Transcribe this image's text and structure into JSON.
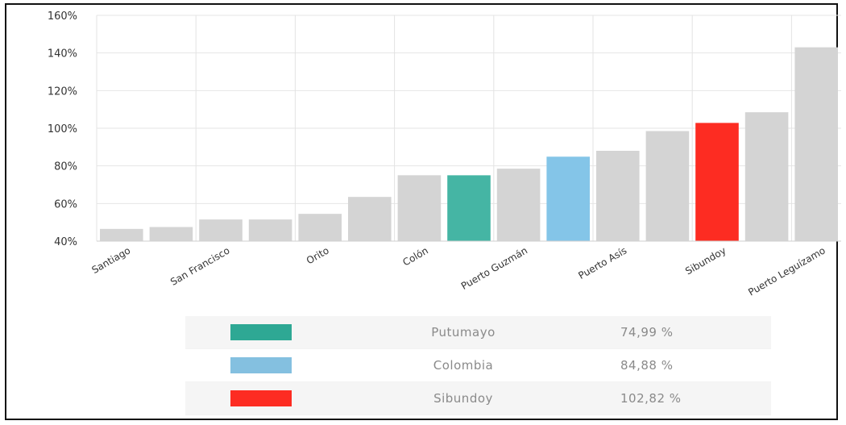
{
  "chart_data": {
    "type": "bar",
    "categories": [
      "Santiago",
      "",
      "San Francisco",
      "",
      "Orito",
      "",
      "Colón",
      "",
      "Puerto Guzmán",
      "",
      "Puerto Asís",
      "",
      "Sibundoy",
      "",
      "Puerto Leguízamo"
    ],
    "values": [
      46.5,
      47.5,
      51.5,
      51.5,
      54.5,
      63.5,
      75,
      74.99,
      78.5,
      84.88,
      88,
      98.5,
      102.82,
      108.5,
      143
    ],
    "bar_colors": [
      "#d4d4d4",
      "#d4d4d4",
      "#d4d4d4",
      "#d4d4d4",
      "#d4d4d4",
      "#d4d4d4",
      "#d4d4d4",
      "#45b5a4",
      "#d4d4d4",
      "#84c5e8",
      "#d4d4d4",
      "#d4d4d4",
      "#fd2c22",
      "#d4d4d4",
      "#d4d4d4"
    ],
    "ylim": [
      40,
      160
    ],
    "yticks": [
      "40%",
      "60%",
      "80%",
      "100%",
      "120%",
      "140%",
      "160%"
    ],
    "grid": true
  },
  "legend": {
    "rows": [
      {
        "name": "Putumayo",
        "value": "74,99 %",
        "color": "#2ea894"
      },
      {
        "name": "Colombia",
        "value": "84,88 %",
        "color": "#84c0e0"
      },
      {
        "name": "Sibundoy",
        "value": "102,82 %",
        "color": "#fd2c22"
      }
    ]
  }
}
